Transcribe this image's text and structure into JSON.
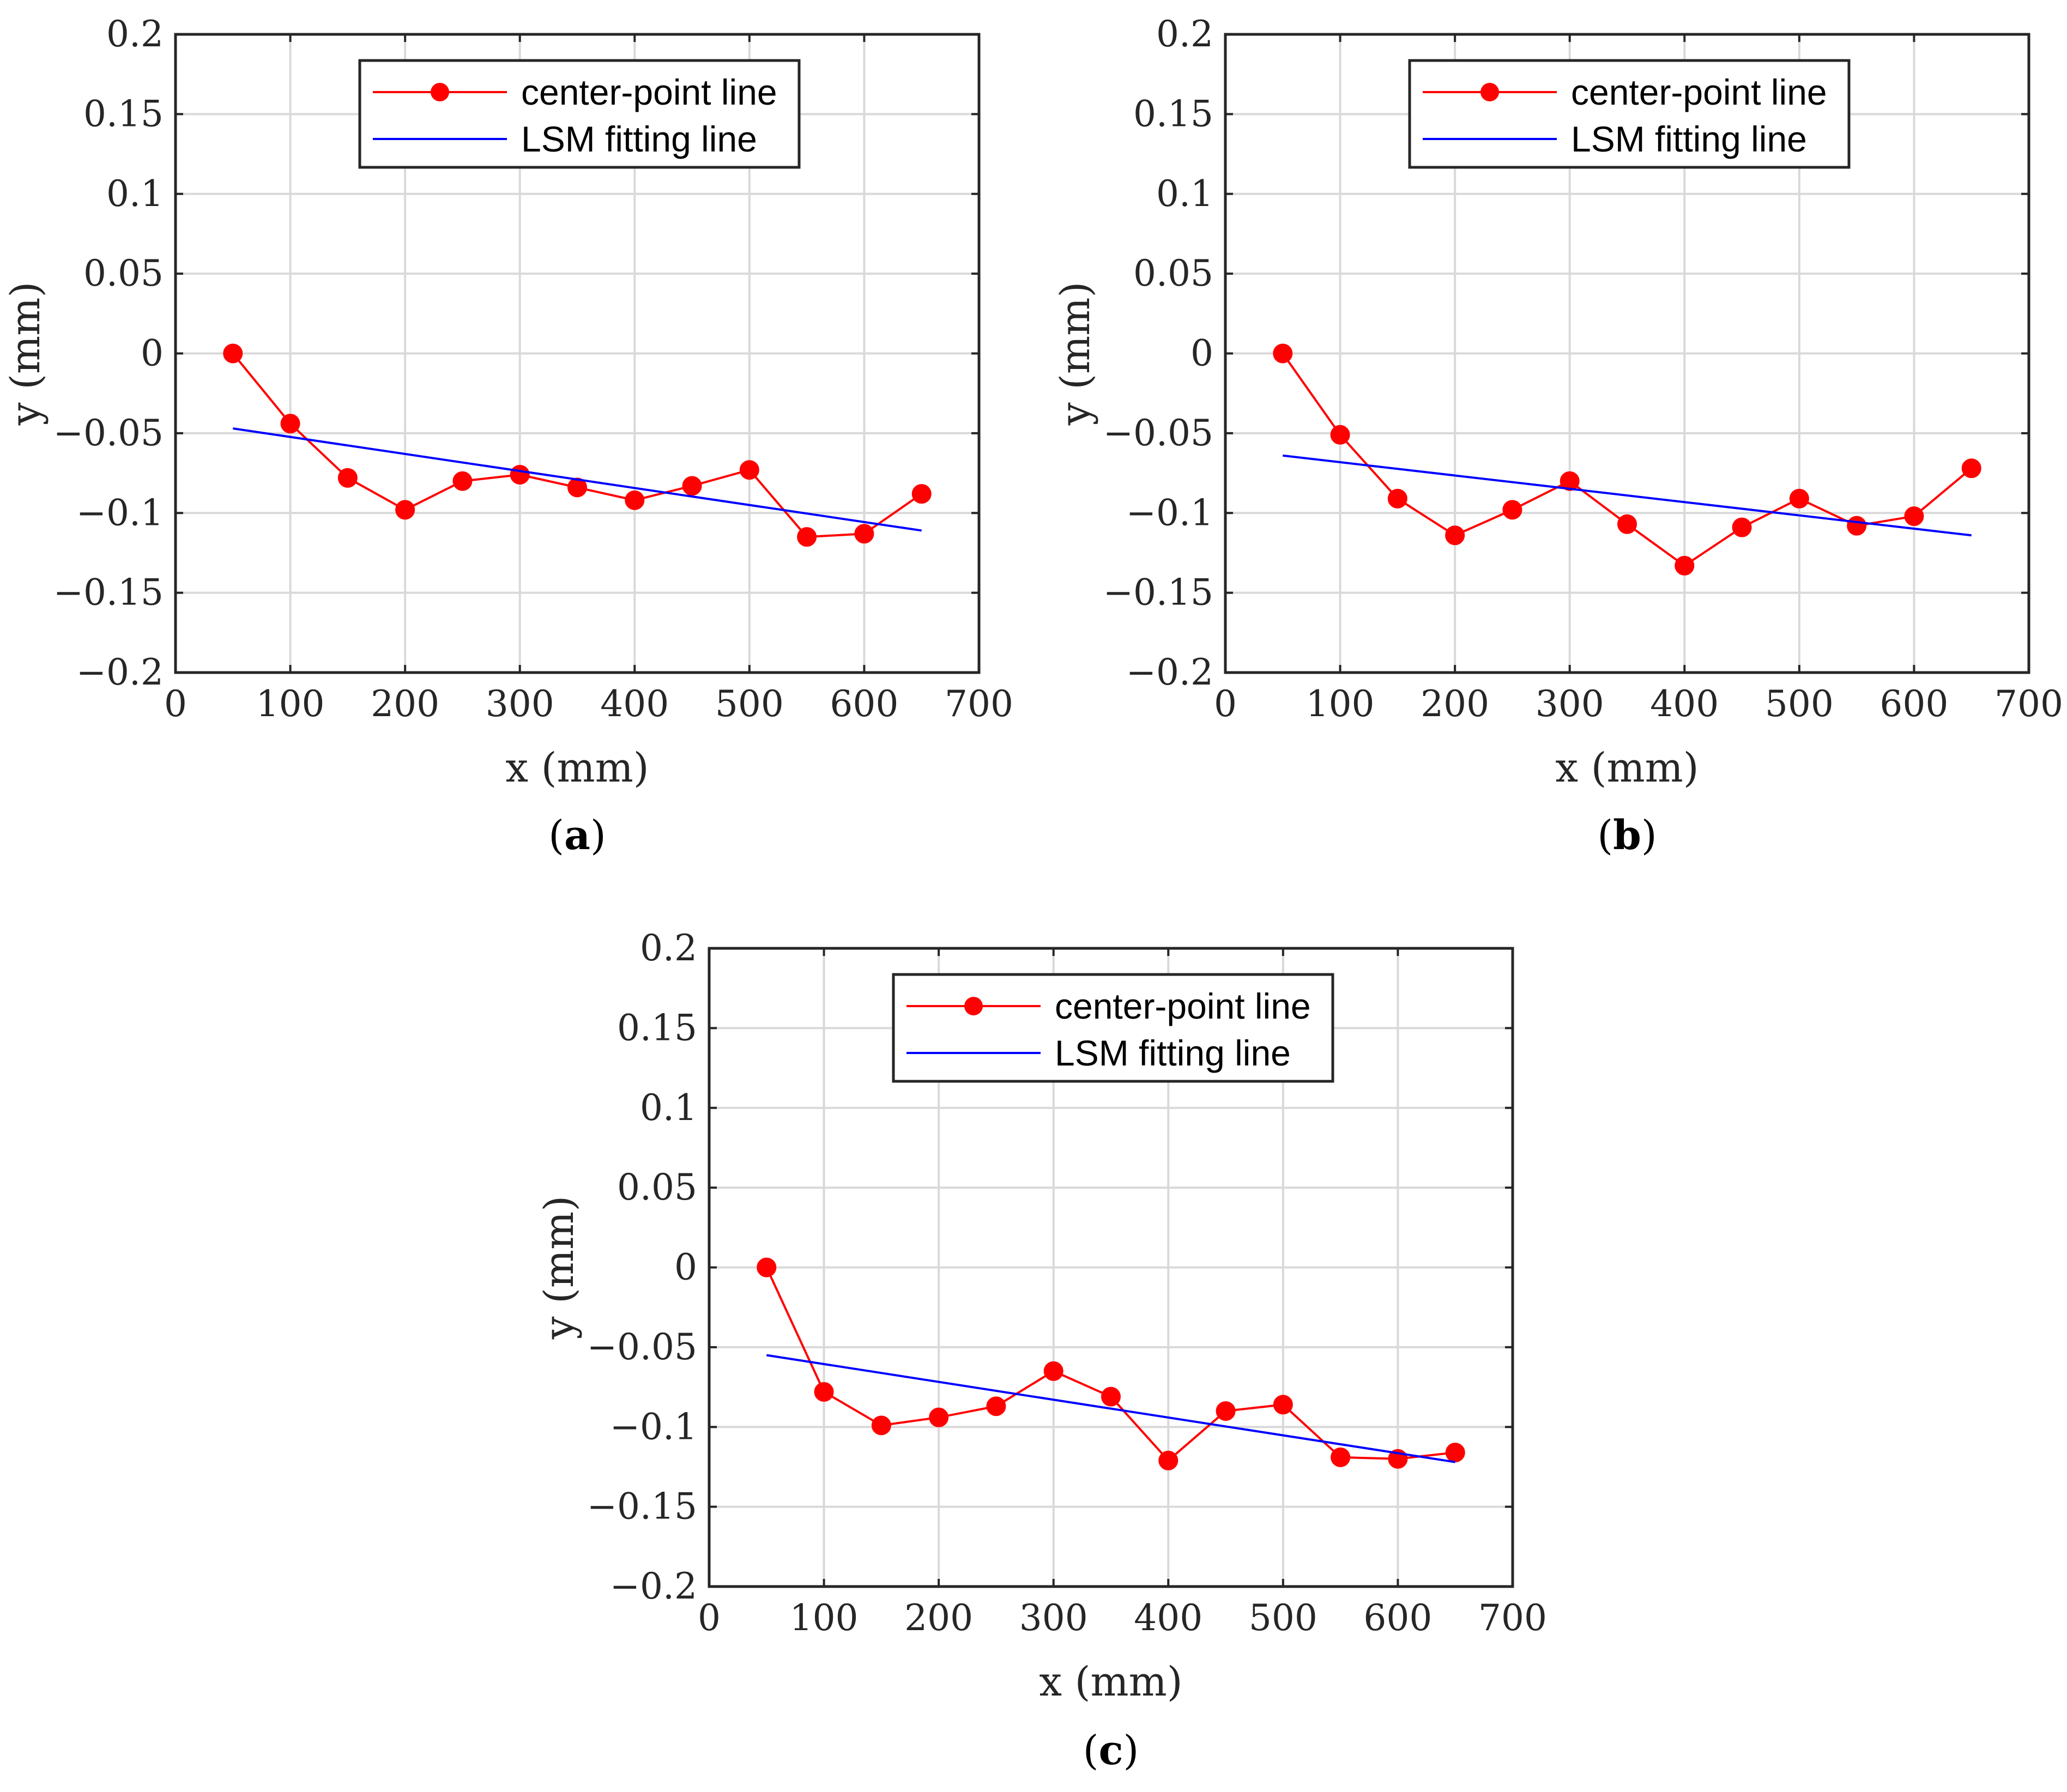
{
  "chart_data": [
    {
      "type": "line",
      "panel": "a",
      "caption": "a",
      "xlabel": "x (mm)",
      "ylabel": "y (mm)",
      "xlim": [
        0,
        700
      ],
      "ylim": [
        -0.2,
        0.2
      ],
      "xticks": [
        0,
        100,
        200,
        300,
        400,
        500,
        600,
        700
      ],
      "xtick_labels": [
        "0",
        "100",
        "200",
        "300",
        "400",
        "500",
        "600",
        "700"
      ],
      "yticks": [
        0.2,
        0.15,
        0.1,
        0.05,
        0,
        -0.05,
        -0.1,
        -0.15,
        -0.2
      ],
      "ytick_labels": [
        "0.2",
        "0.15",
        "0.1",
        "0.05",
        "0",
        "−0.05",
        "−0.1",
        "−0.15",
        "−0.2"
      ],
      "grid": true,
      "legend_position": "top-center",
      "series": [
        {
          "name": "center-point line",
          "color": "#ff0000",
          "marker": "circle",
          "x": [
            50,
            100,
            150,
            200,
            250,
            300,
            350,
            400,
            450,
            500,
            550,
            600,
            650
          ],
          "values": [
            0,
            -0.044,
            -0.078,
            -0.098,
            -0.08,
            -0.076,
            -0.084,
            -0.092,
            -0.083,
            -0.073,
            -0.115,
            -0.113,
            -0.088
          ]
        },
        {
          "name": "LSM fitting line",
          "color": "#0000ff",
          "marker": "none",
          "x": [
            50,
            650
          ],
          "values": [
            -0.047,
            -0.111
          ]
        }
      ]
    },
    {
      "type": "line",
      "panel": "b",
      "caption": "b",
      "xlabel": "x (mm)",
      "ylabel": "y (mm)",
      "xlim": [
        0,
        700
      ],
      "ylim": [
        -0.2,
        0.2
      ],
      "xticks": [
        0,
        100,
        200,
        300,
        400,
        500,
        600,
        700
      ],
      "xtick_labels": [
        "0",
        "100",
        "200",
        "300",
        "400",
        "500",
        "600",
        "700"
      ],
      "yticks": [
        0.2,
        0.15,
        0.1,
        0.05,
        0,
        -0.05,
        -0.1,
        -0.15,
        -0.2
      ],
      "ytick_labels": [
        "0.2",
        "0.15",
        "0.1",
        "0.05",
        "0",
        "−0.05",
        "−0.1",
        "−0.15",
        "−0.2"
      ],
      "grid": true,
      "legend_position": "top-center",
      "series": [
        {
          "name": "center-point line",
          "color": "#ff0000",
          "marker": "circle",
          "x": [
            50,
            100,
            150,
            200,
            250,
            300,
            350,
            400,
            450,
            500,
            550,
            600,
            650
          ],
          "values": [
            0,
            -0.051,
            -0.091,
            -0.114,
            -0.098,
            -0.08,
            -0.107,
            -0.133,
            -0.109,
            -0.091,
            -0.108,
            -0.102,
            -0.072
          ]
        },
        {
          "name": "LSM fitting line",
          "color": "#0000ff",
          "marker": "none",
          "x": [
            50,
            650
          ],
          "values": [
            -0.064,
            -0.114
          ]
        }
      ]
    },
    {
      "type": "line",
      "panel": "c",
      "caption": "c",
      "xlabel": "x (mm)",
      "ylabel": "y (mm)",
      "xlim": [
        0,
        700
      ],
      "ylim": [
        -0.2,
        0.2
      ],
      "xticks": [
        0,
        100,
        200,
        300,
        400,
        500,
        600,
        700
      ],
      "xtick_labels": [
        "0",
        "100",
        "200",
        "300",
        "400",
        "500",
        "600",
        "700"
      ],
      "yticks": [
        0.2,
        0.15,
        0.1,
        0.05,
        0,
        -0.05,
        -0.1,
        -0.15,
        -0.2
      ],
      "ytick_labels": [
        "0.2",
        "0.15",
        "0.1",
        "0.05",
        "0",
        "−0.05",
        "−0.1",
        "−0.15",
        "−0.2"
      ],
      "grid": true,
      "legend_position": "top-center",
      "series": [
        {
          "name": "center-point line",
          "color": "#ff0000",
          "marker": "circle",
          "x": [
            50,
            100,
            150,
            200,
            250,
            300,
            350,
            400,
            450,
            500,
            550,
            600,
            650
          ],
          "values": [
            0,
            -0.078,
            -0.099,
            -0.094,
            -0.087,
            -0.065,
            -0.081,
            -0.121,
            -0.09,
            -0.086,
            -0.119,
            -0.12,
            -0.116
          ]
        },
        {
          "name": "LSM fitting line",
          "color": "#0000ff",
          "marker": "none",
          "x": [
            50,
            650
          ],
          "values": [
            -0.055,
            -0.122
          ]
        }
      ]
    }
  ]
}
